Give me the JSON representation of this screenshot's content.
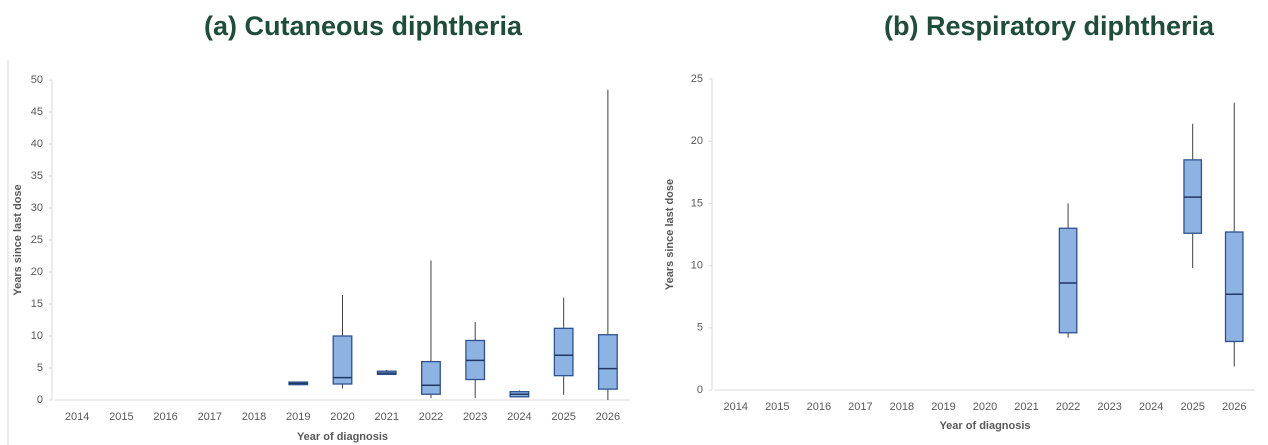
{
  "chart_data": [
    {
      "type": "box",
      "title": "(a) Cutaneous diphtheria",
      "xlabel": "Year of diagnosis",
      "ylabel": "Years since last dose",
      "categories": [
        "2014",
        "2015",
        "2016",
        "2017",
        "2018",
        "2019",
        "2020",
        "2021",
        "2022",
        "2023",
        "2024",
        "2025",
        "2026"
      ],
      "min": [
        null,
        null,
        null,
        null,
        null,
        2.3,
        1.8,
        3.9,
        0.3,
        0.3,
        0.4,
        0.8,
        0
      ],
      "q1": [
        null,
        null,
        null,
        null,
        null,
        2.4,
        2.5,
        4.0,
        0.9,
        3.2,
        0.5,
        3.8,
        1.7
      ],
      "median": [
        null,
        null,
        null,
        null,
        null,
        2.6,
        3.5,
        4.2,
        2.3,
        6.2,
        0.9,
        7.0,
        4.9
      ],
      "q3": [
        null,
        null,
        null,
        null,
        null,
        2.8,
        10,
        4.5,
        6.0,
        9.3,
        1.3,
        11.2,
        10.2
      ],
      "max": [
        null,
        null,
        null,
        null,
        null,
        2.9,
        16.4,
        4.7,
        21.8,
        12.2,
        1.5,
        16,
        48.5
      ],
      "color": "#8db3e2",
      "ylim": [
        0,
        50
      ],
      "yticks": [
        0,
        5,
        10,
        15,
        20,
        25,
        30,
        35,
        40,
        45,
        50
      ],
      "grid": false
    },
    {
      "type": "box",
      "title": "(b) Respiratory diphtheria",
      "xlabel": "Year of diagnosis",
      "ylabel": "Years since last dose",
      "categories": [
        "2014",
        "2015",
        "2016",
        "2017",
        "2018",
        "2019",
        "2020",
        "2021",
        "2022",
        "2023",
        "2024",
        "2025",
        "2026"
      ],
      "min": [
        null,
        null,
        null,
        null,
        null,
        null,
        null,
        null,
        4.2,
        null,
        null,
        9.8,
        1.9
      ],
      "q1": [
        null,
        null,
        null,
        null,
        null,
        null,
        null,
        null,
        4.6,
        null,
        null,
        12.6,
        3.9
      ],
      "median": [
        null,
        null,
        null,
        null,
        null,
        null,
        null,
        null,
        8.6,
        null,
        null,
        15.5,
        7.7
      ],
      "q3": [
        null,
        null,
        null,
        null,
        null,
        null,
        null,
        null,
        13,
        null,
        null,
        18.5,
        12.7
      ],
      "max": [
        null,
        null,
        null,
        null,
        null,
        null,
        null,
        null,
        15,
        null,
        null,
        21.4,
        23.1
      ],
      "color": "#8db3e2",
      "ylim": [
        0,
        25
      ],
      "yticks": [
        0,
        5,
        10,
        15,
        20,
        25
      ],
      "grid": false
    }
  ]
}
